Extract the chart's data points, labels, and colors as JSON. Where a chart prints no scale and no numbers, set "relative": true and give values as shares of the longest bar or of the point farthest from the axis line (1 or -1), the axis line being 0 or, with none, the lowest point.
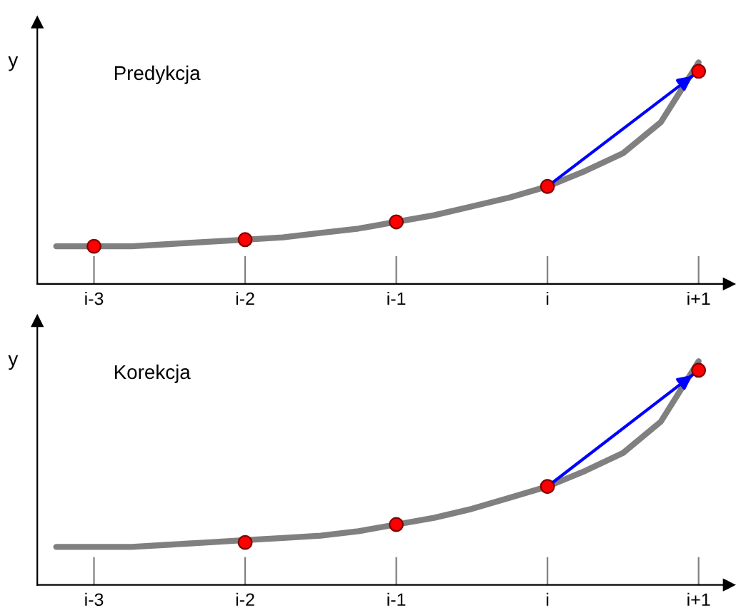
{
  "chart_data": [
    {
      "type": "line",
      "relative": true,
      "ylabel": "y",
      "annotations": [
        "Predykcja"
      ],
      "categories": [
        null,
        "i-3",
        null,
        null,
        null,
        "i-2",
        null,
        null,
        null,
        "i-1",
        null,
        null,
        null,
        "i",
        null,
        null,
        null,
        "i+1"
      ],
      "grid": false,
      "series": [
        {
          "color": "#808080",
          "values": [
            0.17,
            0.17,
            0.17,
            0.18,
            0.19,
            0.2,
            0.21,
            0.23,
            0.25,
            0.28,
            0.31,
            0.35,
            0.39,
            0.44,
            0.51,
            0.59,
            0.73,
            1.0
          ]
        },
        {
          "type": "scatter",
          "color": "#ff0000",
          "marker": "circle",
          "values": [
            null,
            0.17,
            null,
            null,
            null,
            0.2,
            null,
            null,
            null,
            0.28,
            null,
            null,
            null,
            0.44,
            null,
            null,
            null,
            0.96
          ]
        },
        {
          "color": "#0000ff",
          "values": [
            null,
            null,
            null,
            null,
            null,
            null,
            null,
            null,
            null,
            null,
            null,
            null,
            null,
            0.44,
            null,
            null,
            null,
            0.96
          ]
        }
      ]
    },
    {
      "type": "line",
      "relative": true,
      "ylabel": "y",
      "annotations": [
        "Korekcja"
      ],
      "categories": [
        null,
        "i-3",
        null,
        null,
        null,
        "i-2",
        null,
        null,
        null,
        "i-1",
        null,
        null,
        null,
        "i",
        null,
        null,
        null,
        "i+1"
      ],
      "grid": false,
      "series": [
        {
          "color": "#808080",
          "values": [
            0.17,
            0.17,
            0.17,
            0.18,
            0.19,
            0.2,
            0.21,
            0.22,
            0.24,
            0.27,
            0.3,
            0.34,
            0.39,
            0.44,
            0.51,
            0.59,
            0.73,
            1.0
          ]
        },
        {
          "type": "scatter",
          "color": "#ff0000",
          "marker": "circle",
          "values": [
            null,
            null,
            null,
            null,
            null,
            0.19,
            null,
            null,
            null,
            0.27,
            null,
            null,
            null,
            0.44,
            null,
            null,
            null,
            0.96
          ]
        },
        {
          "color": "#0000ff",
          "values": [
            null,
            null,
            null,
            null,
            null,
            null,
            null,
            null,
            null,
            null,
            null,
            null,
            null,
            0.44,
            null,
            null,
            null,
            0.96
          ]
        }
      ]
    }
  ]
}
